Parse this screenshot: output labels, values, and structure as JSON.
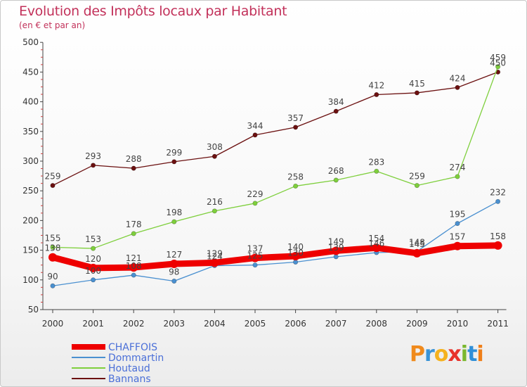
{
  "header": {
    "title": "Evolution des Impôts locaux par Habitant",
    "subtitle": "(en € et par an)"
  },
  "logo": {
    "text": "Proxiti",
    "letter_colors": [
      "#f08a1c",
      "#3a93d6",
      "#f5b21e",
      "#e8322b",
      "#7ab82e",
      "#2f8fd8",
      "#ef7f1a"
    ]
  },
  "chart_data": {
    "type": "line",
    "title": "Evolution des Impôts locaux par Habitant",
    "subtitle": "(en € et par an)",
    "xlabel": "",
    "ylabel": "",
    "x": [
      "2000",
      "2001",
      "2002",
      "2003",
      "2004",
      "2005",
      "2006",
      "2007",
      "2008",
      "2009",
      "2010",
      "2011"
    ],
    "ylim": [
      50,
      500
    ],
    "yticks": [
      50,
      100,
      150,
      200,
      250,
      300,
      350,
      400,
      450,
      500
    ],
    "grid": false,
    "legend_position": "bottom-left",
    "series": [
      {
        "name": "CHAFFOIS",
        "color": "#ee0000",
        "values": [
          138,
          120,
          121,
          127,
          129,
          137,
          140,
          149,
          154,
          145,
          157,
          158
        ]
      },
      {
        "name": "Dommartin",
        "color": "#4a90d0",
        "values": [
          90,
          100,
          108,
          98,
          124,
          125,
          130,
          139,
          146,
          148,
          195,
          232
        ]
      },
      {
        "name": "Houtaud",
        "color": "#7ecf3c",
        "values": [
          155,
          153,
          178,
          198,
          216,
          229,
          258,
          268,
          283,
          259,
          274,
          459
        ]
      },
      {
        "name": "Bannans",
        "color": "#6b1010",
        "values": [
          259,
          293,
          288,
          299,
          308,
          344,
          357,
          384,
          412,
          415,
          424,
          450
        ]
      }
    ]
  }
}
